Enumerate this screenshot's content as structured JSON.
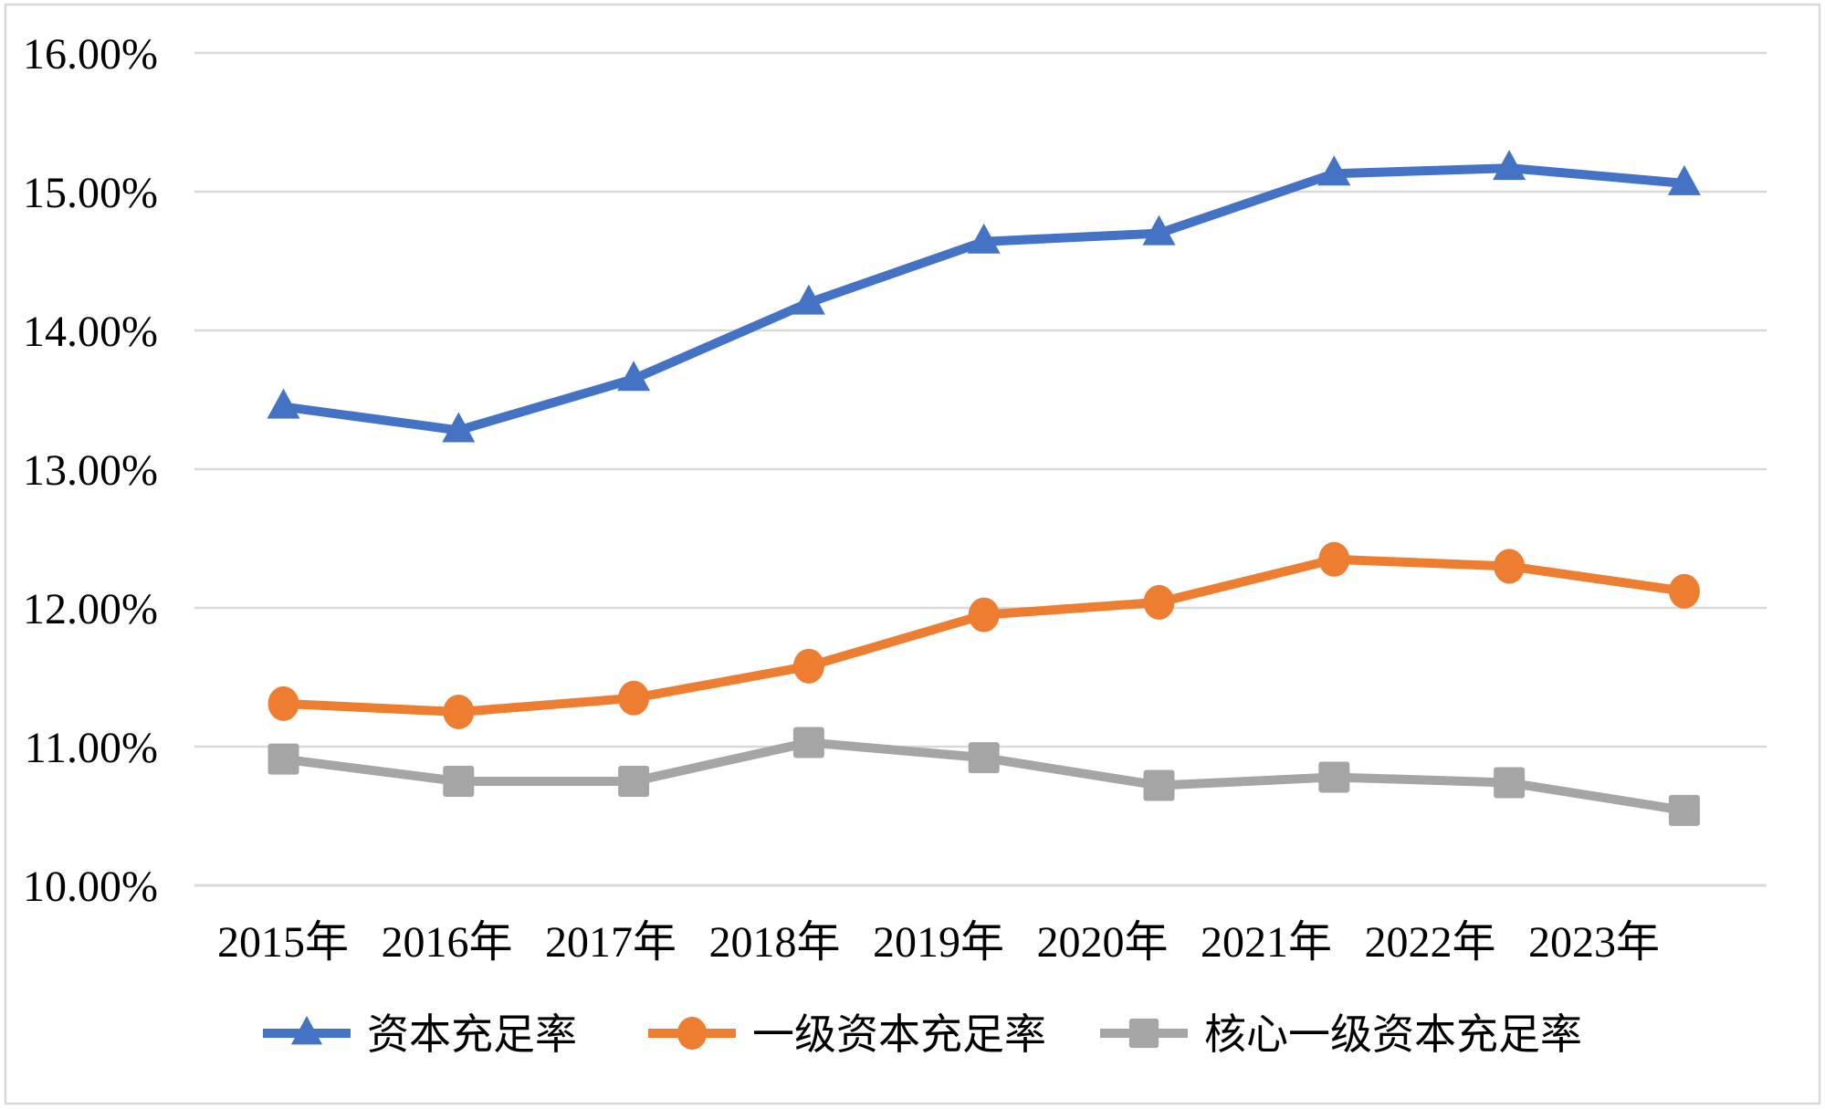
{
  "chart_data": {
    "type": "line",
    "title": "",
    "categories": [
      "2015年",
      "2016年",
      "2017年",
      "2018年",
      "2019年",
      "2020年",
      "2021年",
      "2022年",
      "2023年"
    ],
    "series": [
      {
        "name": "资本充足率",
        "marker": "triangle",
        "color": "#4472C4",
        "values": [
          13.45,
          13.28,
          13.65,
          14.2,
          14.64,
          14.7,
          15.13,
          15.17,
          15.06
        ]
      },
      {
        "name": "一级资本充足率",
        "marker": "circle",
        "color": "#ED7D31",
        "values": [
          11.31,
          11.25,
          11.35,
          11.58,
          11.95,
          12.04,
          12.35,
          12.3,
          12.12
        ]
      },
      {
        "name": "核心一级资本充足率",
        "marker": "square",
        "color": "#A5A5A5",
        "values": [
          10.91,
          10.75,
          10.75,
          11.03,
          10.92,
          10.72,
          10.78,
          10.74,
          10.54
        ]
      }
    ],
    "ylim": [
      10,
      16
    ],
    "ytick_step": 1,
    "yticks": [
      "10.00%",
      "11.00%",
      "12.00%",
      "13.00%",
      "14.00%",
      "15.00%",
      "16.00%"
    ],
    "xlabel": "",
    "ylabel": "",
    "grid": true,
    "gridline_color": "#D9D9D9",
    "axis_line_color": "#D9D9D9",
    "border_color": "#D9D9D9",
    "background": "#FFFFFF",
    "legend_position": "bottom"
  }
}
